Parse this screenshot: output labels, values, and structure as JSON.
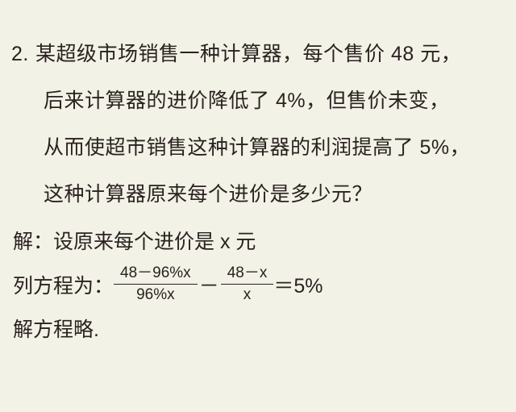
{
  "text_color": "#2a2220",
  "background_color": "#f2f2e6",
  "font_family": "Microsoft YaHei",
  "problem": {
    "number": "2.",
    "line1": "某超级市场销售一种计算器，每个售价 48 元，",
    "line2": "后来计算器的进价降低了 4%，但售价未变，",
    "line3": "从而使超市销售这种计算器的利润提高了 5%，",
    "line4": "这种计算器原来每个进价是多少元？"
  },
  "solution": {
    "intro_label": "解：",
    "intro_text": "设原来每个进价是 x 元",
    "eq_label": "列方程为：",
    "frac1_num": "48－96%x",
    "frac1_den": "96%x",
    "minus": "－",
    "frac2_num": "48－x",
    "frac2_den": "x",
    "equals_rhs": "＝5%",
    "final": "解方程略."
  }
}
